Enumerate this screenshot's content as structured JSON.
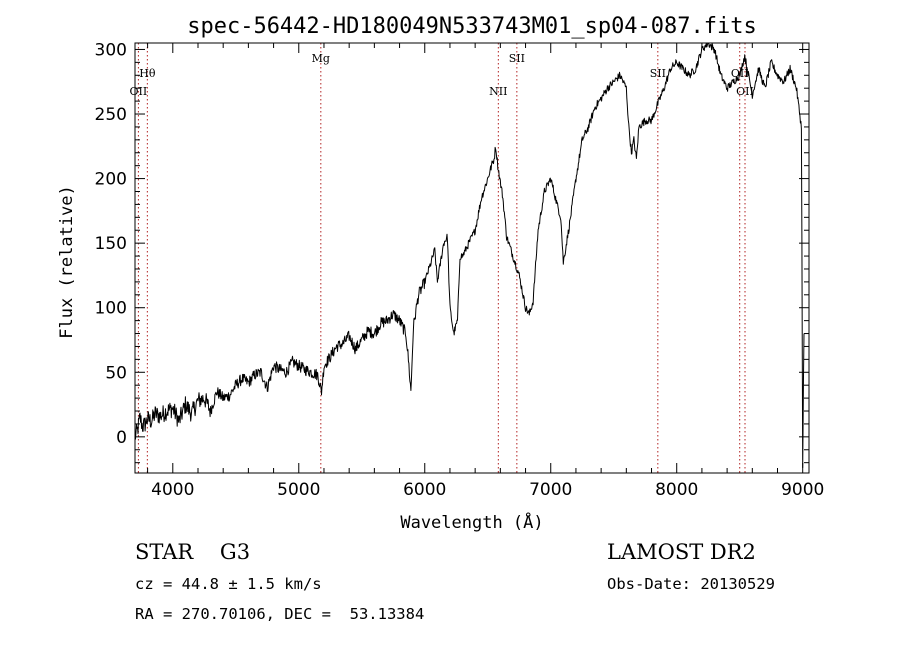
{
  "chart_data": {
    "type": "line",
    "title": "spec-56442-HD180049N533743M01_sp04-087.fits",
    "xlabel": "Wavelength (Å)",
    "ylabel": "Flux (relative)",
    "xlim": [
      3700,
      9050
    ],
    "ylim": [
      -28,
      305
    ],
    "xticks": [
      4000,
      5000,
      6000,
      7000,
      8000,
      9000
    ],
    "yticks": [
      0,
      50,
      100,
      150,
      200,
      250,
      300
    ],
    "series": [
      {
        "x": [
          3700,
          3720,
          3740,
          3760,
          3780,
          3800,
          3830,
          3860,
          3900,
          3950,
          4000,
          4050,
          4100,
          4150,
          4200,
          4250,
          4300,
          4350,
          4400,
          4450,
          4500,
          4550,
          4600,
          4650,
          4700,
          4750,
          4800,
          4850,
          4900,
          4950,
          5000,
          5050,
          5100,
          5150,
          5180,
          5200,
          5250,
          5300,
          5350,
          5400,
          5450,
          5500,
          5550,
          5600,
          5650,
          5700,
          5750,
          5800,
          5850,
          5870,
          5890,
          5910,
          5950,
          6000,
          6050,
          6080,
          6100,
          6150,
          6180,
          6200,
          6230,
          6260,
          6280,
          6300,
          6350,
          6400,
          6450,
          6500,
          6530,
          6550,
          6563,
          6580,
          6620,
          6650,
          6700,
          6750,
          6800,
          6830,
          6860,
          6900,
          6950,
          7000,
          7050,
          7080,
          7100,
          7150,
          7200,
          7250,
          7300,
          7350,
          7400,
          7450,
          7500,
          7550,
          7600,
          7620,
          7640,
          7660,
          7680,
          7700,
          7750,
          7800,
          7850,
          7900,
          7950,
          8000,
          8050,
          8100,
          8150,
          8200,
          8250,
          8300,
          8350,
          8400,
          8450,
          8500,
          8540,
          8550,
          8600,
          8650,
          8700,
          8750,
          8800,
          8850,
          8900,
          8950,
          8990,
          9000,
          9010
        ],
        "y": [
          0,
          5,
          15,
          8,
          10,
          14,
          12,
          18,
          16,
          20,
          22,
          12,
          25,
          18,
          28,
          30,
          20,
          35,
          30,
          32,
          40,
          45,
          42,
          48,
          50,
          38,
          55,
          52,
          50,
          58,
          55,
          52,
          50,
          48,
          35,
          55,
          62,
          70,
          72,
          78,
          68,
          75,
          82,
          80,
          88,
          90,
          95,
          90,
          80,
          60,
          35,
          85,
          110,
          120,
          135,
          145,
          120,
          150,
          155,
          100,
          80,
          90,
          140,
          140,
          150,
          160,
          185,
          200,
          210,
          215,
          225,
          210,
          185,
          155,
          140,
          125,
          100,
          95,
          105,
          160,
          190,
          200,
          180,
          170,
          135,
          165,
          200,
          230,
          240,
          255,
          262,
          270,
          275,
          280,
          270,
          240,
          220,
          230,
          215,
          240,
          245,
          245,
          258,
          270,
          285,
          290,
          285,
          280,
          285,
          300,
          305,
          300,
          280,
          270,
          275,
          280,
          295,
          290,
          265,
          285,
          270,
          290,
          280,
          275,
          285,
          270,
          240,
          -25,
          80
        ],
        "color": "#000000"
      }
    ],
    "lines": [
      {
        "label": "Hθ",
        "x": 3798,
        "row": 1
      },
      {
        "label": "OII",
        "x": 3727,
        "row": 2
      },
      {
        "label": "Mg",
        "x": 5175,
        "row": 0
      },
      {
        "label": "SII",
        "x": 6731,
        "row": 0
      },
      {
        "label": "NII",
        "x": 6584,
        "row": 2
      },
      {
        "label": "SII",
        "x": 7850,
        "row": 1
      },
      {
        "label": "OII",
        "x": 8500,
        "row": 1
      },
      {
        "label": "OII",
        "x": 8542,
        "row": 2
      }
    ],
    "grid": false
  },
  "info": {
    "object": "STAR    G3",
    "survey": "LAMOST DR2",
    "cz": "cz = 44.8 ± 1.5 km/s",
    "obsdate": "Obs-Date: 20130529",
    "coords": "RA = 270.70106, DEC =  53.13384"
  }
}
